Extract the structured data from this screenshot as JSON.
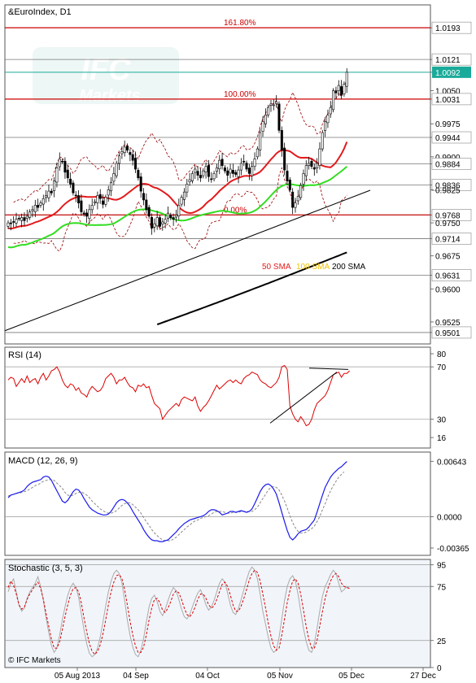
{
  "colors": {
    "up_candle": "#2ca02c",
    "down_candle": "#cc0000",
    "sma50": "#e41a1c",
    "sma100": "#33dd22",
    "sma200": "#000000",
    "fib": "#cc0000",
    "bollinger": "#990000",
    "rsi": "#dd0000",
    "macd": "#1a1aee",
    "macd_signal": "#888888",
    "stoch_k": "#aaaaaa",
    "stoch_d": "#dd0000",
    "price_label_bg": "#1aaa99"
  },
  "chart_data": [
    {
      "type": "candlestick",
      "title": "&EuroIndex, D1",
      "ylim": [
        0.9475,
        1.0245
      ],
      "y_ticks": [
        "1.0193",
        "1.0121",
        "1.0092",
        "1.0050",
        "1.0031",
        "0.9975",
        "0.9944",
        "0.9900",
        "0.9884",
        "0.9836",
        "0.9825",
        "0.9768",
        "0.9750",
        "0.9714",
        "0.9675",
        "0.9631",
        "0.9600",
        "0.9525",
        "0.9501"
      ],
      "current_price": "1.0092",
      "horizontal_levels": [
        "1.0193",
        "1.0121",
        "1.0031",
        "0.9944",
        "0.9884",
        "0.9836",
        "0.9768",
        "0.9714",
        "0.9631",
        "0.9501"
      ],
      "fib_levels": [
        {
          "label": "161.80%",
          "value": 1.0193
        },
        {
          "label": "100.00%",
          "value": 1.0031
        },
        {
          "label": "0.00%",
          "value": 0.9768
        }
      ],
      "sma_labels": {
        "sma50": "50 SMA",
        "sma100": "100 SMA",
        "sma200": "200 SMA"
      },
      "x_labels": [
        "05 Aug 2013",
        "04 Sep",
        "04 Oct",
        "05 Nov",
        "05 Dec",
        "27 Dec"
      ],
      "closes": [
        0.975,
        0.9748,
        0.9752,
        0.9758,
        0.976,
        0.9762,
        0.9755,
        0.9765,
        0.9775,
        0.978,
        0.979,
        0.9785,
        0.9795,
        0.9805,
        0.9812,
        0.9822,
        0.9818,
        0.9845,
        0.9875,
        0.9895,
        0.989,
        0.9865,
        0.9852,
        0.9838,
        0.9818,
        0.9812,
        0.9795,
        0.9775,
        0.977,
        0.9765,
        0.978,
        0.979,
        0.9798,
        0.9812,
        0.9805,
        0.9792,
        0.9808,
        0.9825,
        0.9842,
        0.9862,
        0.9885,
        0.9902,
        0.9912,
        0.9922,
        0.9915,
        0.9905,
        0.9892,
        0.9872,
        0.9852,
        0.9822,
        0.9802,
        0.978,
        0.9765,
        0.9738,
        0.9748,
        0.9762,
        0.9742,
        0.9752,
        0.9758,
        0.9772,
        0.9762,
        0.9758,
        0.9768,
        0.979,
        0.9808,
        0.982,
        0.9838,
        0.9848,
        0.9862,
        0.9872,
        0.9858,
        0.9852,
        0.9868,
        0.9878,
        0.9855,
        0.985,
        0.9862,
        0.9875,
        0.9892,
        0.988,
        0.9868,
        0.9858,
        0.9872,
        0.9862,
        0.986,
        0.987,
        0.9885,
        0.9888,
        0.9872,
        0.9862,
        0.9878,
        0.9895,
        0.9918,
        0.9955,
        0.998,
        0.9995,
        1.0012,
        1.002,
        1.0018,
        1.0025,
        0.996,
        0.9915,
        0.987,
        0.9845,
        0.9825,
        0.9785,
        0.9795,
        0.981,
        0.9835,
        0.9862,
        0.988,
        0.9885,
        0.9878,
        0.9872,
        0.9885,
        0.9918,
        0.9955,
        0.998,
        0.9995,
        1.0012,
        1.005,
        1.0045,
        1.0062,
        1.004,
        1.0065,
        1.0092
      ]
    },
    {
      "type": "line",
      "title": "RSI (14)",
      "ylim": [
        8,
        85
      ],
      "y_ticks": [
        "80",
        "70",
        "30",
        "16"
      ],
      "values": [
        60,
        62,
        61,
        55,
        58,
        61,
        58,
        63,
        58,
        60,
        61,
        57,
        62,
        65,
        60,
        63,
        67,
        68,
        70,
        66,
        60,
        56,
        54,
        57,
        56,
        52,
        54,
        50,
        49,
        47,
        52,
        55,
        53,
        51,
        52,
        55,
        61,
        63,
        65,
        62,
        57,
        60,
        60,
        62,
        58,
        55,
        54,
        51,
        56,
        55,
        57,
        54,
        55,
        48,
        42,
        40,
        38,
        30,
        33,
        36,
        38,
        40,
        42,
        40,
        45,
        47,
        46,
        45,
        44,
        47,
        40,
        36,
        39,
        41,
        44,
        48,
        52,
        56,
        53,
        55,
        57,
        59,
        60,
        58,
        60,
        58,
        57,
        61,
        63,
        64,
        66,
        65,
        64,
        60,
        58,
        57,
        55,
        54,
        56,
        58,
        62,
        70,
        71,
        68,
        40,
        34,
        30,
        28,
        32,
        29,
        25,
        26,
        30,
        37,
        42,
        44,
        46,
        48,
        52,
        58,
        64,
        65,
        66,
        62,
        65,
        65,
        67
      ]
    },
    {
      "type": "line",
      "title": "MACD (12, 26, 9)",
      "ylim": [
        -0.0045,
        0.0075
      ],
      "y_ticks": [
        "0.00643",
        "0.0000",
        "-0.00365"
      ],
      "series": [
        {
          "values": [
            0.0022,
            0.0025,
            0.0026,
            0.0027,
            0.0028,
            0.0029,
            0.0031,
            0.0035,
            0.0038,
            0.004,
            0.0041,
            0.0042,
            0.0043,
            0.0046,
            0.0047,
            0.0046,
            0.0042,
            0.0036,
            0.003,
            0.0024,
            0.0018,
            0.0016,
            0.0019,
            0.0024,
            0.0029,
            0.0032,
            0.0031,
            0.0027,
            0.0021,
            0.0016,
            0.0011,
            0.0008,
            0.0006,
            0.0004,
            0.0003,
            0.0002,
            0.0002,
            0.0003,
            0.0006,
            0.0011,
            0.0016,
            0.0019,
            0.002,
            0.0019,
            0.0016,
            0.0012,
            0.0006,
            0.0001,
            -0.0004,
            -0.0009,
            -0.0015,
            -0.002,
            -0.0024,
            -0.0027,
            -0.0028,
            -0.0028,
            -0.0029,
            -0.0029,
            -0.0028,
            -0.0027,
            -0.0024,
            -0.0021,
            -0.0018,
            -0.0014,
            -0.0011,
            -0.0008,
            -0.0006,
            -0.0004,
            -0.0003,
            -0.0002,
            -0.0001,
            0.0,
            0.0001,
            0.0003,
            0.0006,
            0.0008,
            0.0008,
            0.0007,
            0.0005,
            0.0002,
            0.0003,
            0.0004,
            0.0006,
            0.0006,
            0.0005,
            0.0006,
            0.0007,
            0.0006,
            0.0005,
            0.0006,
            0.0009,
            0.0015,
            0.0022,
            0.0029,
            0.0034,
            0.0037,
            0.0038,
            0.0036,
            0.0032,
            0.0026,
            0.0016,
            0.0005,
            -0.0006,
            -0.0016,
            -0.0024,
            -0.0027,
            -0.0024,
            -0.002,
            -0.0017,
            -0.0016,
            -0.0015,
            -0.0012,
            -0.0008,
            -0.0004,
            0.0005,
            0.0015,
            0.0025,
            0.0034,
            0.004,
            0.0046,
            0.005,
            0.0053,
            0.0056,
            0.0058,
            0.0061,
            0.0064
          ]
        },
        {
          "values": [
            0.0024,
            0.0025,
            0.0026,
            0.0027,
            0.0027,
            0.0028,
            0.0029,
            0.003,
            0.0032,
            0.0034,
            0.0036,
            0.0037,
            0.0039,
            0.0041,
            0.0042,
            0.0043,
            0.0043,
            0.0042,
            0.0039,
            0.0036,
            0.0033,
            0.0028,
            0.0025,
            0.0024,
            0.0025,
            0.0027,
            0.0028,
            0.0029,
            0.0027,
            0.0025,
            0.0022,
            0.0018,
            0.0015,
            0.0012,
            0.0009,
            0.0007,
            0.0005,
            0.0004,
            0.0004,
            0.0005,
            0.0007,
            0.001,
            0.0013,
            0.0015,
            0.0016,
            0.0016,
            0.0014,
            0.0011,
            0.0008,
            0.0004,
            -0.0001,
            -0.0006,
            -0.001,
            -0.0015,
            -0.0019,
            -0.0022,
            -0.0025,
            -0.0027,
            -0.0028,
            -0.0028,
            -0.0028,
            -0.0026,
            -0.0024,
            -0.0021,
            -0.0018,
            -0.0015,
            -0.0012,
            -0.001,
            -0.0007,
            -0.0005,
            -0.0004,
            -0.0002,
            -0.0001,
            0.0,
            0.0001,
            0.0003,
            0.0005,
            0.0006,
            0.0006,
            0.0006,
            0.0005,
            0.0004,
            0.0004,
            0.0005,
            0.0005,
            0.0005,
            0.0006,
            0.0006,
            0.0006,
            0.0006,
            0.0006,
            0.0008,
            0.0011,
            0.0016,
            0.0021,
            0.0026,
            0.0031,
            0.0034,
            0.0035,
            0.0034,
            0.0031,
            0.0025,
            0.0018,
            0.001,
            0.0001,
            -0.0007,
            -0.0013,
            -0.0017,
            -0.0019,
            -0.0019,
            -0.0018,
            -0.0016,
            -0.0014,
            -0.0011,
            -0.0006,
            0.0,
            0.0008,
            0.0015,
            0.0023,
            0.003,
            0.0036,
            0.0041,
            0.0046,
            0.0049,
            0.0052
          ]
        }
      ]
    },
    {
      "type": "line",
      "title": "Stochastic (3, 5, 3)",
      "ylim": [
        0,
        100
      ],
      "y_ticks": [
        "95",
        "75",
        "25",
        "0"
      ],
      "series": [
        {
          "values": [
            70,
            78,
            82,
            70,
            58,
            52,
            55,
            64,
            70,
            74,
            78,
            84,
            75,
            62,
            46,
            32,
            20,
            14,
            18,
            30,
            44,
            56,
            67,
            74,
            78,
            74,
            65,
            50,
            35,
            22,
            13,
            10,
            12,
            18,
            28,
            42,
            57,
            70,
            80,
            87,
            90,
            87,
            78,
            62,
            44,
            30,
            19,
            12,
            10,
            16,
            27,
            42,
            56,
            64,
            67,
            61,
            52,
            48,
            54,
            62,
            69,
            74,
            71,
            63,
            54,
            47,
            45,
            49,
            56,
            63,
            69,
            72,
            66,
            58,
            53,
            56,
            62,
            70,
            78,
            82,
            79,
            69,
            58,
            51,
            49,
            55,
            63,
            72,
            81,
            89,
            93,
            90,
            82,
            68,
            52,
            40,
            28,
            18,
            14,
            16,
            28,
            45,
            62,
            75,
            82,
            85,
            80,
            68,
            52,
            36,
            24,
            16,
            14,
            22,
            36,
            52,
            66,
            75,
            80,
            86,
            90,
            87,
            78,
            70,
            72,
            75,
            73
          ]
        },
        {
          "values": [
            74,
            80,
            76,
            68,
            58,
            54,
            56,
            63,
            68,
            72,
            76,
            79,
            73,
            63,
            50,
            38,
            26,
            18,
            18,
            24,
            35,
            47,
            58,
            67,
            73,
            74,
            70,
            60,
            46,
            33,
            22,
            15,
            12,
            15,
            21,
            31,
            44,
            58,
            70,
            79,
            85,
            86,
            82,
            72,
            58,
            43,
            30,
            20,
            14,
            14,
            19,
            30,
            44,
            55,
            63,
            64,
            60,
            53,
            51,
            55,
            61,
            68,
            71,
            69,
            63,
            55,
            49,
            47,
            50,
            56,
            63,
            68,
            68,
            64,
            58,
            55,
            57,
            63,
            70,
            77,
            79,
            75,
            67,
            58,
            52,
            52,
            57,
            64,
            72,
            81,
            87,
            90,
            88,
            80,
            68,
            55,
            41,
            29,
            20,
            16,
            18,
            30,
            45,
            60,
            71,
            80,
            82,
            78,
            68,
            53,
            38,
            26,
            18,
            18,
            25,
            38,
            52,
            64,
            73,
            80,
            85,
            87,
            84,
            78,
            75,
            74,
            73
          ]
        }
      ]
    }
  ],
  "watermark": {
    "brand": "IFC",
    "sub": "Markets"
  },
  "copyright": "© IFC Markets"
}
